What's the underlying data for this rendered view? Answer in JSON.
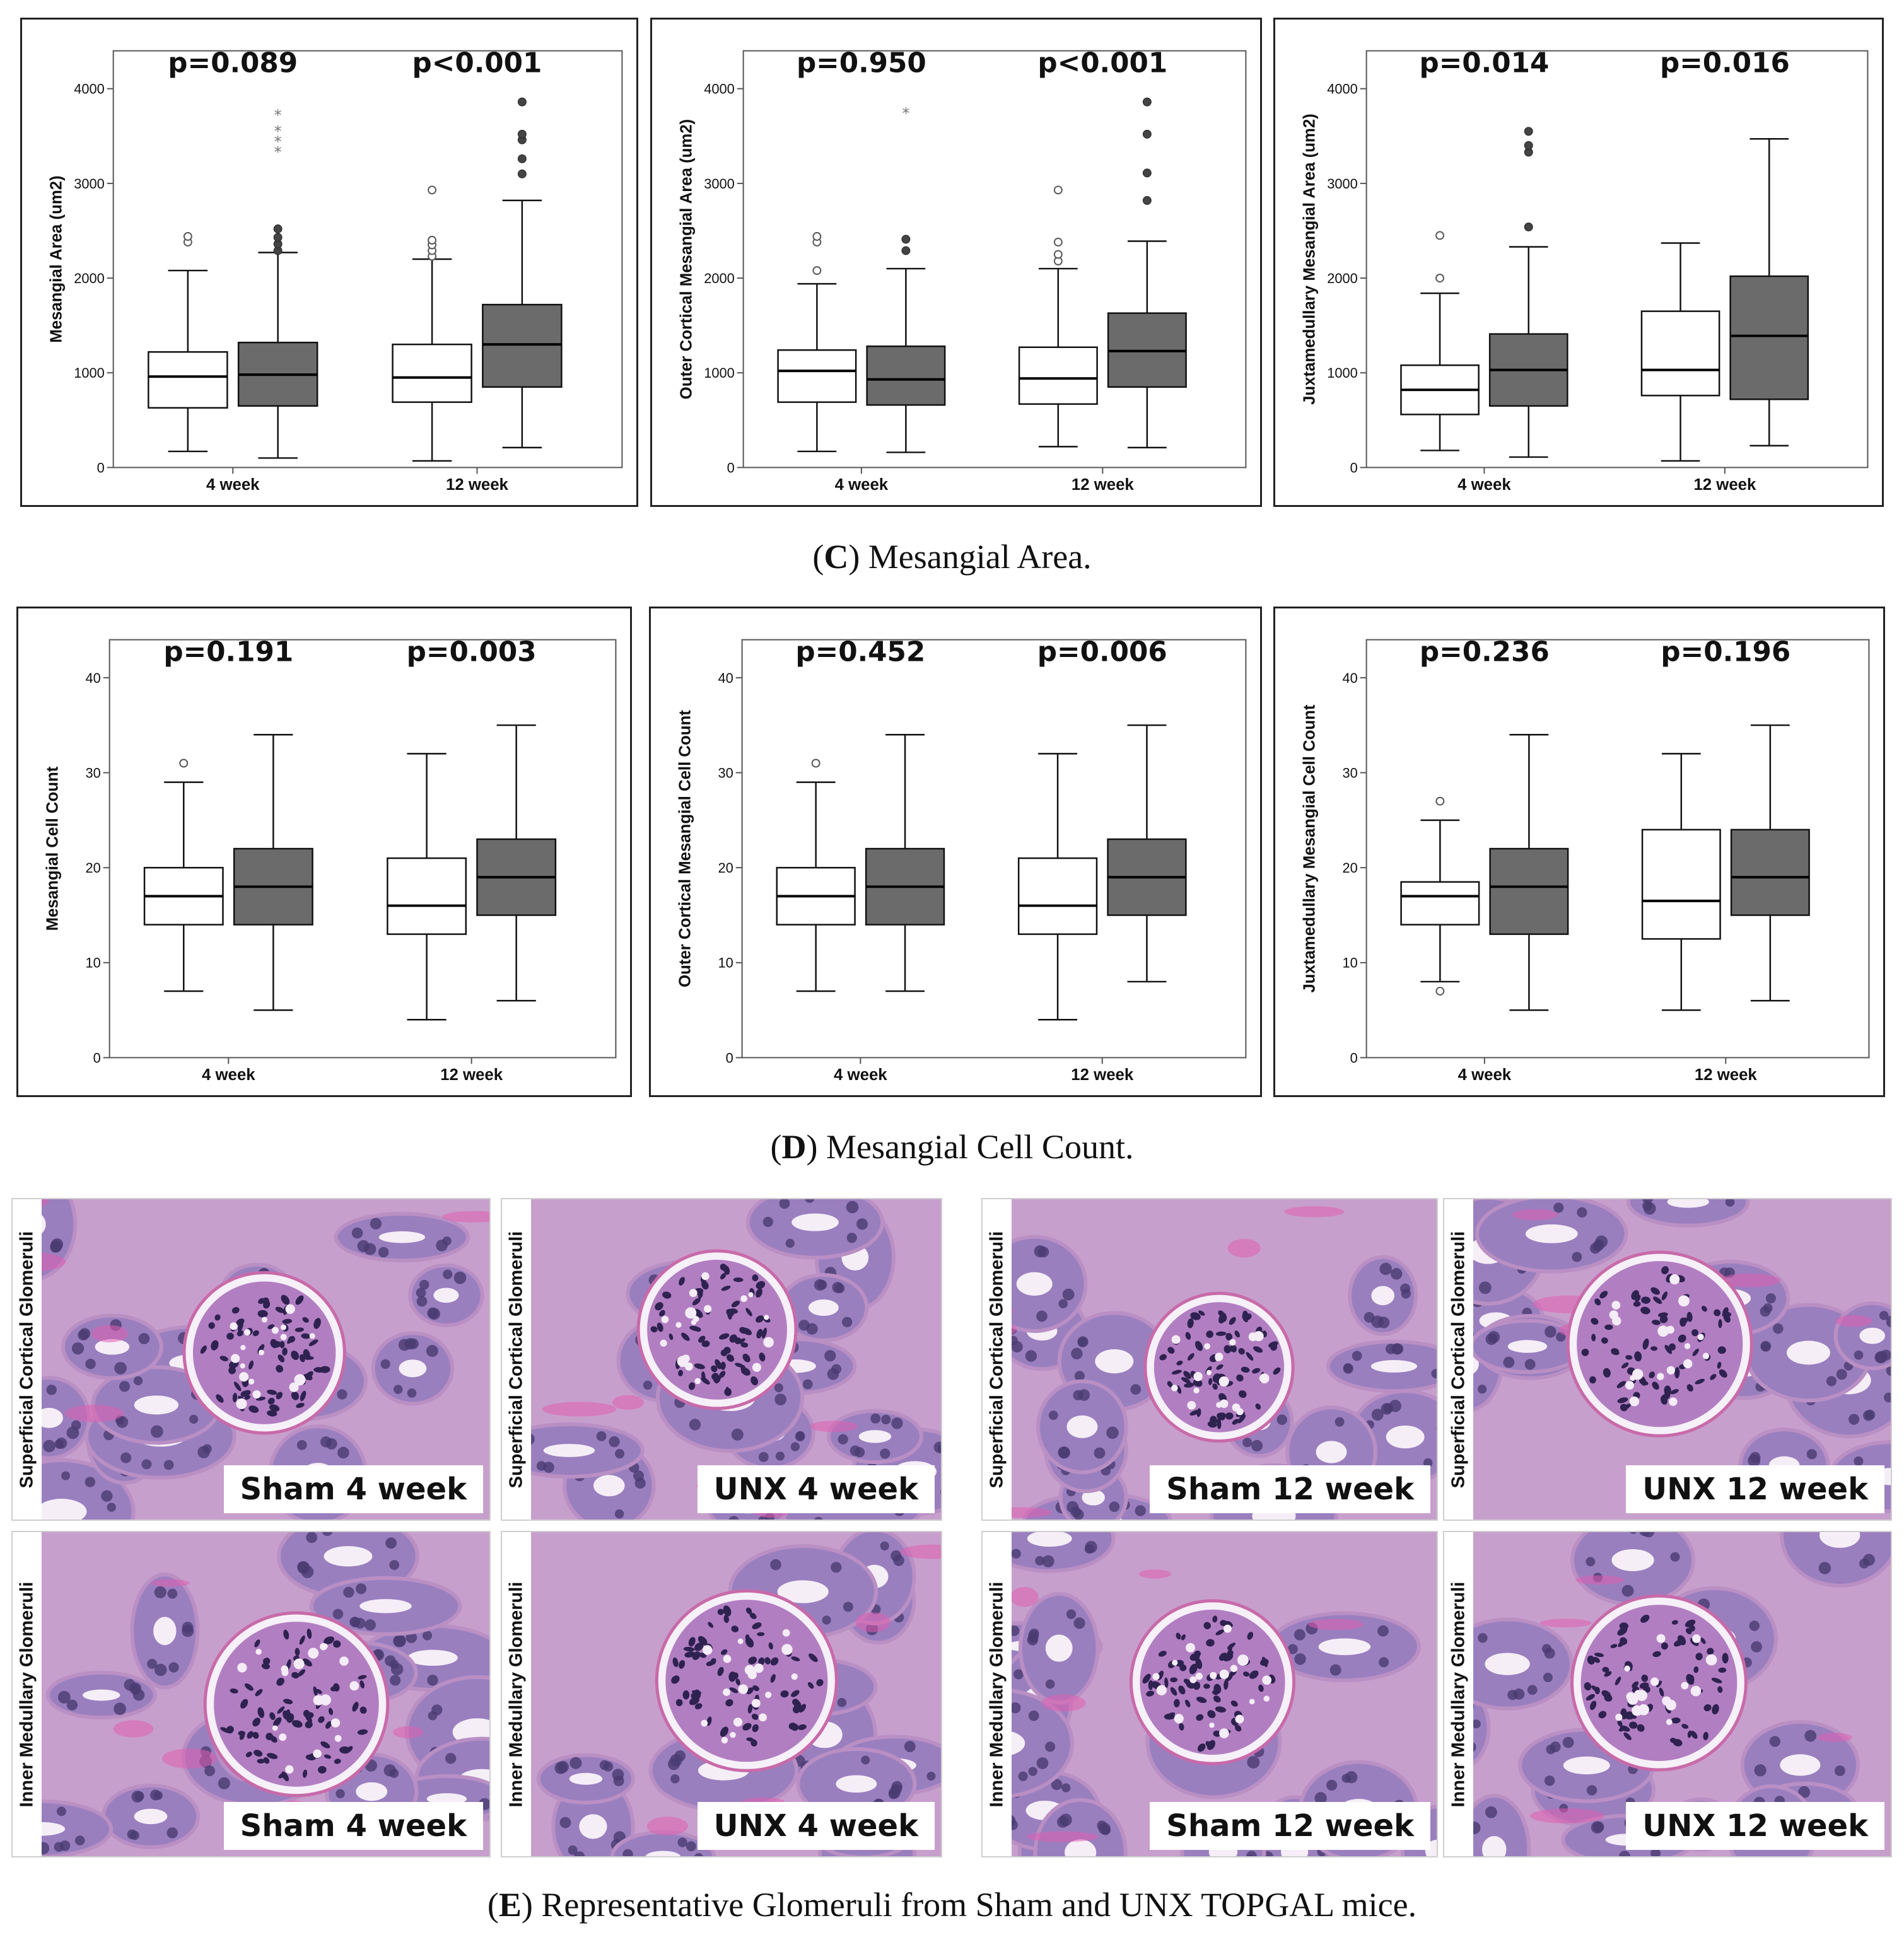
{
  "panels": {
    "C": {
      "caption_letter": "C",
      "caption_text": " Mesangial Area.",
      "charts": [
        {
          "type": "box",
          "ylabel": "Mesangial Area (um2)",
          "yticks": [
            0,
            1000,
            2000,
            3000,
            4000
          ],
          "ylim": [
            0,
            4400
          ],
          "groups": [
            "4 week",
            "12 week"
          ],
          "pvalues": [
            "p=0.089",
            "p<0.001"
          ],
          "boxes": [
            {
              "group": 0,
              "series": "Sham",
              "min": 170,
              "q1": 630,
              "median": 960,
              "q3": 1220,
              "max": 2080,
              "outliers": [
                2380,
                2440
              ],
              "extremes": []
            },
            {
              "group": 0,
              "series": "UNX",
              "min": 100,
              "q1": 650,
              "median": 980,
              "q3": 1320,
              "max": 2270,
              "outliers": [
                2290,
                2360,
                2430,
                2520
              ],
              "extremes": [
                3340,
                3450,
                3560,
                3730
              ]
            },
            {
              "group": 1,
              "series": "Sham",
              "min": 70,
              "q1": 690,
              "median": 950,
              "q3": 1300,
              "max": 2200,
              "outliers": [
                2230,
                2290,
                2350,
                2400,
                2930
              ],
              "extremes": []
            },
            {
              "group": 1,
              "series": "UNX",
              "min": 210,
              "q1": 850,
              "median": 1300,
              "q3": 1720,
              "max": 2820,
              "outliers": [
                3100,
                3260,
                3460,
                3520,
                3860
              ],
              "extremes": []
            }
          ]
        },
        {
          "type": "box",
          "ylabel": "Outer Cortical Mesangial Area (um2)",
          "yticks": [
            0,
            1000,
            2000,
            3000,
            4000
          ],
          "ylim": [
            0,
            4400
          ],
          "groups": [
            "4 week",
            "12 week"
          ],
          "pvalues": [
            "p=0.950",
            "p<0.001"
          ],
          "boxes": [
            {
              "group": 0,
              "series": "Sham",
              "min": 170,
              "q1": 690,
              "median": 1020,
              "q3": 1240,
              "max": 1940,
              "outliers": [
                2080,
                2380,
                2440
              ],
              "extremes": []
            },
            {
              "group": 0,
              "series": "UNX",
              "min": 160,
              "q1": 660,
              "median": 930,
              "q3": 1280,
              "max": 2100,
              "outliers": [
                2290,
                2410
              ],
              "extremes": [
                3750
              ]
            },
            {
              "group": 1,
              "series": "Sham",
              "min": 220,
              "q1": 670,
              "median": 940,
              "q3": 1270,
              "max": 2100,
              "outliers": [
                2180,
                2250,
                2380,
                2930
              ],
              "extremes": []
            },
            {
              "group": 1,
              "series": "UNX",
              "min": 210,
              "q1": 850,
              "median": 1230,
              "q3": 1630,
              "max": 2390,
              "outliers": [
                2820,
                3110,
                3520,
                3860
              ],
              "extremes": []
            }
          ]
        },
        {
          "type": "box",
          "ylabel": "Juxtamedullary Mesangial Area (um2)",
          "yticks": [
            0,
            1000,
            2000,
            3000,
            4000
          ],
          "ylim": [
            0,
            4400
          ],
          "groups": [
            "4 week",
            "12 week"
          ],
          "pvalues": [
            "p=0.014",
            "p=0.016"
          ],
          "boxes": [
            {
              "group": 0,
              "series": "Sham",
              "min": 180,
              "q1": 560,
              "median": 820,
              "q3": 1080,
              "max": 1840,
              "outliers": [
                2000,
                2450
              ],
              "extremes": []
            },
            {
              "group": 0,
              "series": "UNX",
              "min": 110,
              "q1": 650,
              "median": 1030,
              "q3": 1410,
              "max": 2330,
              "outliers": [
                2540,
                3330,
                3400,
                3550
              ],
              "extremes": []
            },
            {
              "group": 1,
              "series": "Sham",
              "min": 70,
              "q1": 760,
              "median": 1030,
              "q3": 1650,
              "max": 2370,
              "outliers": [],
              "extremes": []
            },
            {
              "group": 1,
              "series": "UNX",
              "min": 230,
              "q1": 720,
              "median": 1390,
              "q3": 2020,
              "max": 3470,
              "outliers": [],
              "extremes": []
            }
          ]
        }
      ]
    },
    "D": {
      "caption_letter": "D",
      "caption_text": " Mesangial Cell Count.",
      "charts": [
        {
          "type": "box",
          "ylabel": "Mesangial Cell Count",
          "yticks": [
            0,
            10,
            20,
            30,
            40
          ],
          "ylim": [
            0,
            44
          ],
          "groups": [
            "4 week",
            "12 week"
          ],
          "pvalues": [
            "p=0.191",
            "p=0.003"
          ],
          "boxes": [
            {
              "group": 0,
              "series": "Sham",
              "min": 7,
              "q1": 14,
              "median": 17,
              "q3": 20,
              "max": 29,
              "outliers": [
                31
              ],
              "extremes": []
            },
            {
              "group": 0,
              "series": "UNX",
              "min": 5,
              "q1": 14,
              "median": 18,
              "q3": 22,
              "max": 34,
              "outliers": [],
              "extremes": []
            },
            {
              "group": 1,
              "series": "Sham",
              "min": 4,
              "q1": 13,
              "median": 16,
              "q3": 21,
              "max": 32,
              "outliers": [],
              "extremes": []
            },
            {
              "group": 1,
              "series": "UNX",
              "min": 6,
              "q1": 15,
              "median": 19,
              "q3": 23,
              "max": 35,
              "outliers": [],
              "extremes": []
            }
          ]
        },
        {
          "type": "box",
          "ylabel": "Outer Cortical Mesangial Cell Count",
          "yticks": [
            0,
            10,
            20,
            30,
            40
          ],
          "ylim": [
            0,
            44
          ],
          "groups": [
            "4 week",
            "12 week"
          ],
          "pvalues": [
            "p=0.452",
            "p=0.006"
          ],
          "boxes": [
            {
              "group": 0,
              "series": "Sham",
              "min": 7,
              "q1": 14,
              "median": 17,
              "q3": 20,
              "max": 29,
              "outliers": [
                31
              ],
              "extremes": []
            },
            {
              "group": 0,
              "series": "UNX",
              "min": 7,
              "q1": 14,
              "median": 18,
              "q3": 22,
              "max": 34,
              "outliers": [],
              "extremes": []
            },
            {
              "group": 1,
              "series": "Sham",
              "min": 4,
              "q1": 13,
              "median": 16,
              "q3": 21,
              "max": 32,
              "outliers": [],
              "extremes": []
            },
            {
              "group": 1,
              "series": "UNX",
              "min": 8,
              "q1": 15,
              "median": 19,
              "q3": 23,
              "max": 35,
              "outliers": [],
              "extremes": []
            }
          ]
        },
        {
          "type": "box",
          "ylabel": "Juxtamedullary Mesangial Cell Count",
          "yticks": [
            0,
            10,
            20,
            30,
            40
          ],
          "ylim": [
            0,
            44
          ],
          "groups": [
            "4 week",
            "12 week"
          ],
          "pvalues": [
            "p=0.236",
            "p=0.196"
          ],
          "boxes": [
            {
              "group": 0,
              "series": "Sham",
              "min": 8,
              "q1": 14,
              "median": 17,
              "q3": 18.5,
              "max": 25,
              "outliers": [
                7,
                27
              ],
              "extremes": []
            },
            {
              "group": 0,
              "series": "UNX",
              "min": 5,
              "q1": 13,
              "median": 18,
              "q3": 22,
              "max": 34,
              "outliers": [],
              "extremes": []
            },
            {
              "group": 1,
              "series": "Sham",
              "min": 5,
              "q1": 12.5,
              "median": 16.5,
              "q3": 24,
              "max": 32,
              "outliers": [],
              "extremes": []
            },
            {
              "group": 1,
              "series": "UNX",
              "min": 6,
              "q1": 15,
              "median": 19,
              "q3": 24,
              "max": 35,
              "outliers": [],
              "extremes": []
            }
          ]
        }
      ]
    },
    "E": {
      "caption_letter": "E",
      "caption_text": " Representative Glomeruli from Sham and UNX TOPGAL mice.",
      "micrographs": [
        {
          "side_label": "Superficial Cortical Glomeruli",
          "tag": "Sham 4 week"
        },
        {
          "side_label": "Superficial Cortical Glomeruli",
          "tag": "UNX 4 week"
        },
        {
          "side_label": "Superficial Cortical Glomeruli",
          "tag": "Sham 12 week"
        },
        {
          "side_label": "Superficial Cortical Glomeruli",
          "tag": "UNX 12 week"
        },
        {
          "side_label": "Inner Medullary Glomeruli",
          "tag": "Sham 4 week"
        },
        {
          "side_label": "Inner Medullary Glomeruli",
          "tag": "UNX 4 week"
        },
        {
          "side_label": "Inner Medullary Glomeruli",
          "tag": "Sham 12 week"
        },
        {
          "side_label": "Inner Medullary Glomeruli",
          "tag": "UNX 12 week"
        }
      ]
    }
  },
  "colors": {
    "sham_fill": "#ffffff",
    "unx_fill": "#6b6b6b",
    "axis": "#555555",
    "text": "#111111",
    "tissue_base": "#c79fcc",
    "tissue_cells": "#9a7fbf",
    "nuclei": "#4a3b72",
    "lumen": "#f5eef7",
    "eosin": "#e05fb0"
  }
}
